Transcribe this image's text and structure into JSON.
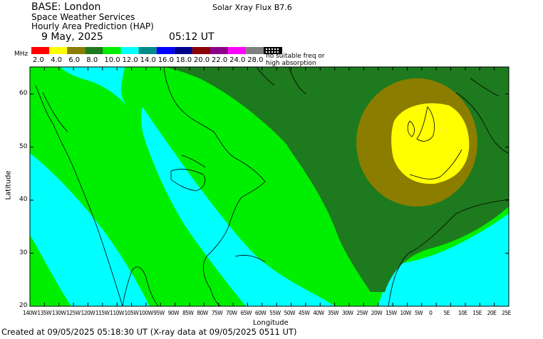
{
  "header": {
    "base": "BASE: London",
    "org": "Space Weather Services",
    "product": "Hourly Area Prediction (HAP)",
    "date": "9 May, 2025",
    "time": "05:12 UT",
    "xray": "Solar Xray Flux B7.6"
  },
  "legend": {
    "unit": "MHz",
    "swatches": [
      {
        "label": "2.0",
        "color": "#ff0000"
      },
      {
        "label": "4.0",
        "color": "#ffff00"
      },
      {
        "label": "6.0",
        "color": "#8b7d00"
      },
      {
        "label": "8.0",
        "color": "#1e7a1e"
      },
      {
        "label": "10.0",
        "color": "#00ee00"
      },
      {
        "label": "12.0",
        "color": "#00ffff"
      },
      {
        "label": "14.0",
        "color": "#008b8b"
      },
      {
        "label": "16.0",
        "color": "#0000ff"
      },
      {
        "label": "18.0",
        "color": "#00008b"
      },
      {
        "label": "20.0",
        "color": "#8b0000"
      },
      {
        "label": "22.0",
        "color": "#8b008b"
      },
      {
        "label": "24.0",
        "color": "#ff00ff"
      },
      {
        "label": "28.0",
        "color": "#808080"
      }
    ],
    "no_freq_line1": "no suitable freq or",
    "no_freq_line2": "high absorption"
  },
  "axes": {
    "ylabel": "Latitude",
    "xlabel": "Longitude",
    "y_ticks": [
      "20",
      "30",
      "40",
      "50",
      "60"
    ],
    "x_ticks": [
      "140W",
      "135W",
      "130W",
      "125W",
      "120W",
      "115W",
      "110W",
      "105W",
      "100W",
      "95W",
      "90W",
      "85W",
      "80W",
      "75W",
      "70W",
      "65W",
      "60W",
      "55W",
      "50W",
      "45W",
      "40W",
      "35W",
      "30W",
      "25W",
      "20W",
      "15W",
      "10W",
      "5W",
      "0",
      "5E",
      "10E",
      "15E",
      "20E",
      "25E"
    ]
  },
  "footer": "Created at 09/05/2025 05:18:30 UT (X-ray data at 09/05/2025 0511 UT)",
  "colors": {
    "band_10": "#00ee00",
    "band_12": "#00ffff",
    "band_8": "#1e7a1e",
    "band_6": "#8b7d00",
    "band_4": "#ffff00"
  }
}
